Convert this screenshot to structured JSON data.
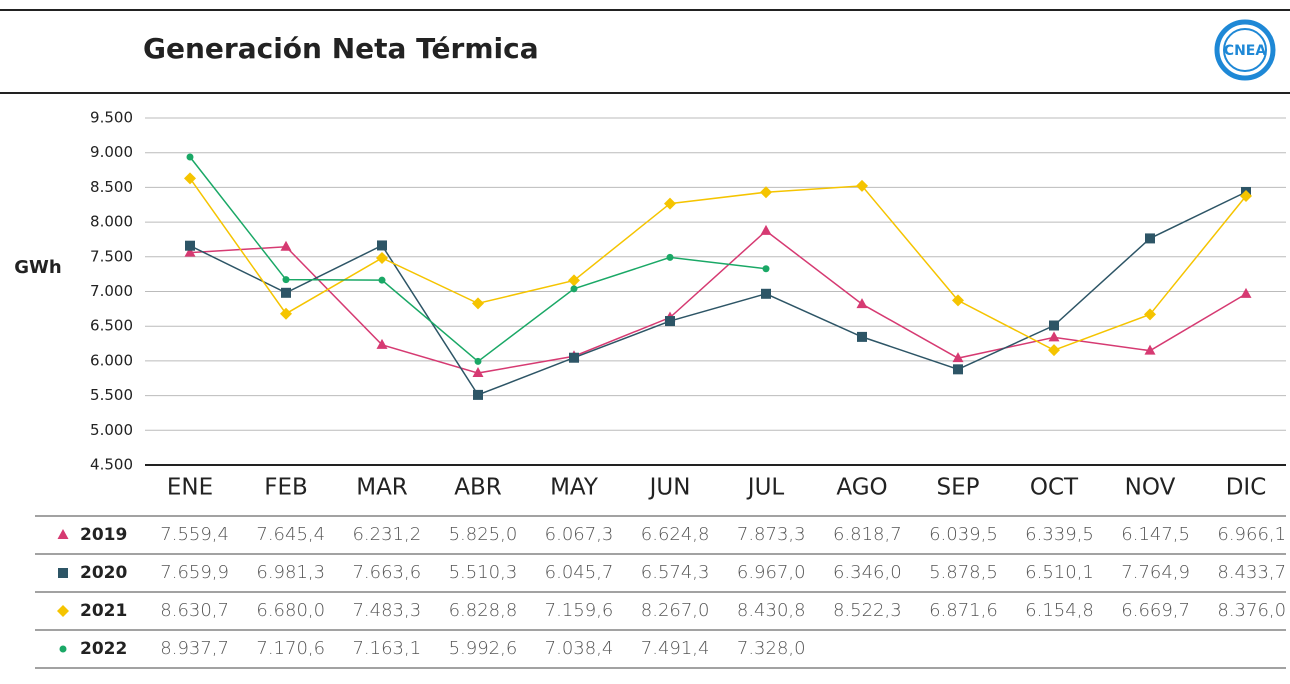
{
  "chart_data": {
    "type": "line",
    "title": "Generación Neta Térmica",
    "y_label": "GWh",
    "logo": "CNEA",
    "categories": [
      "ENE",
      "FEB",
      "MAR",
      "ABR",
      "MAY",
      "JUN",
      "JUL",
      "AGO",
      "SEP",
      "OCT",
      "NOV",
      "DIC"
    ],
    "ylim": [
      4500,
      9500
    ],
    "yticks": [
      {
        "value": 4500,
        "label": "4.500"
      },
      {
        "value": 5000,
        "label": "5.000"
      },
      {
        "value": 5500,
        "label": "5.500"
      },
      {
        "value": 6000,
        "label": "6.000"
      },
      {
        "value": 6500,
        "label": "6.500"
      },
      {
        "value": 7000,
        "label": "7.000"
      },
      {
        "value": 7500,
        "label": "7.500"
      },
      {
        "value": 8000,
        "label": "8.000"
      },
      {
        "value": 8500,
        "label": "8.500"
      },
      {
        "value": 9000,
        "label": "9.000"
      },
      {
        "value": 9500,
        "label": "9.500"
      }
    ],
    "grid": true,
    "series": [
      {
        "name": "2019",
        "color": "#d63a72",
        "marker": "triangle",
        "values": [
          7559.4,
          7645.4,
          6231.2,
          5825.0,
          6067.3,
          6624.8,
          7873.3,
          6818.7,
          6039.5,
          6339.5,
          6147.5,
          6966.1
        ],
        "value_labels": [
          "7.559,4",
          "7.645,4",
          "6.231,2",
          "5.825,0",
          "6.067,3",
          "6.624,8",
          "7.873,3",
          "6.818,7",
          "6.039,5",
          "6.339,5",
          "6.147,5",
          "6.966,1"
        ]
      },
      {
        "name": "2020",
        "color": "#2d5566",
        "marker": "square",
        "values": [
          7659.9,
          6981.3,
          7663.6,
          5510.3,
          6045.7,
          6574.3,
          6967.0,
          6346.0,
          5878.5,
          6510.1,
          7764.9,
          8433.7
        ],
        "value_labels": [
          "7.659,9",
          "6.981,3",
          "7.663,6",
          "5.510,3",
          "6.045,7",
          "6.574,3",
          "6.967,0",
          "6.346,0",
          "5.878,5",
          "6.510,1",
          "7.764,9",
          "8.433,7"
        ]
      },
      {
        "name": "2021",
        "color": "#f5c400",
        "marker": "diamond",
        "values": [
          8630.7,
          6680.0,
          7483.3,
          6828.8,
          7159.6,
          8267.0,
          8430.8,
          8522.3,
          6871.6,
          6154.8,
          6669.7,
          8376.0
        ],
        "value_labels": [
          "8.630,7",
          "6.680,0",
          "7.483,3",
          "6.828,8",
          "7.159,6",
          "8.267,0",
          "8.430,8",
          "8.522,3",
          "6.871,6",
          "6.154,8",
          "6.669,7",
          "8.376,0"
        ]
      },
      {
        "name": "2022",
        "color": "#1aa866",
        "marker": "circle",
        "values": [
          8937.7,
          7170.6,
          7163.1,
          5992.6,
          7038.4,
          7491.4,
          7328.0,
          null,
          null,
          null,
          null,
          null
        ],
        "value_labels": [
          "8.937,7",
          "7.170,6",
          "7.163,1",
          "5.992,6",
          "7.038,4",
          "7.491,4",
          "7.328,0",
          null,
          null,
          null,
          null,
          null
        ]
      }
    ]
  }
}
